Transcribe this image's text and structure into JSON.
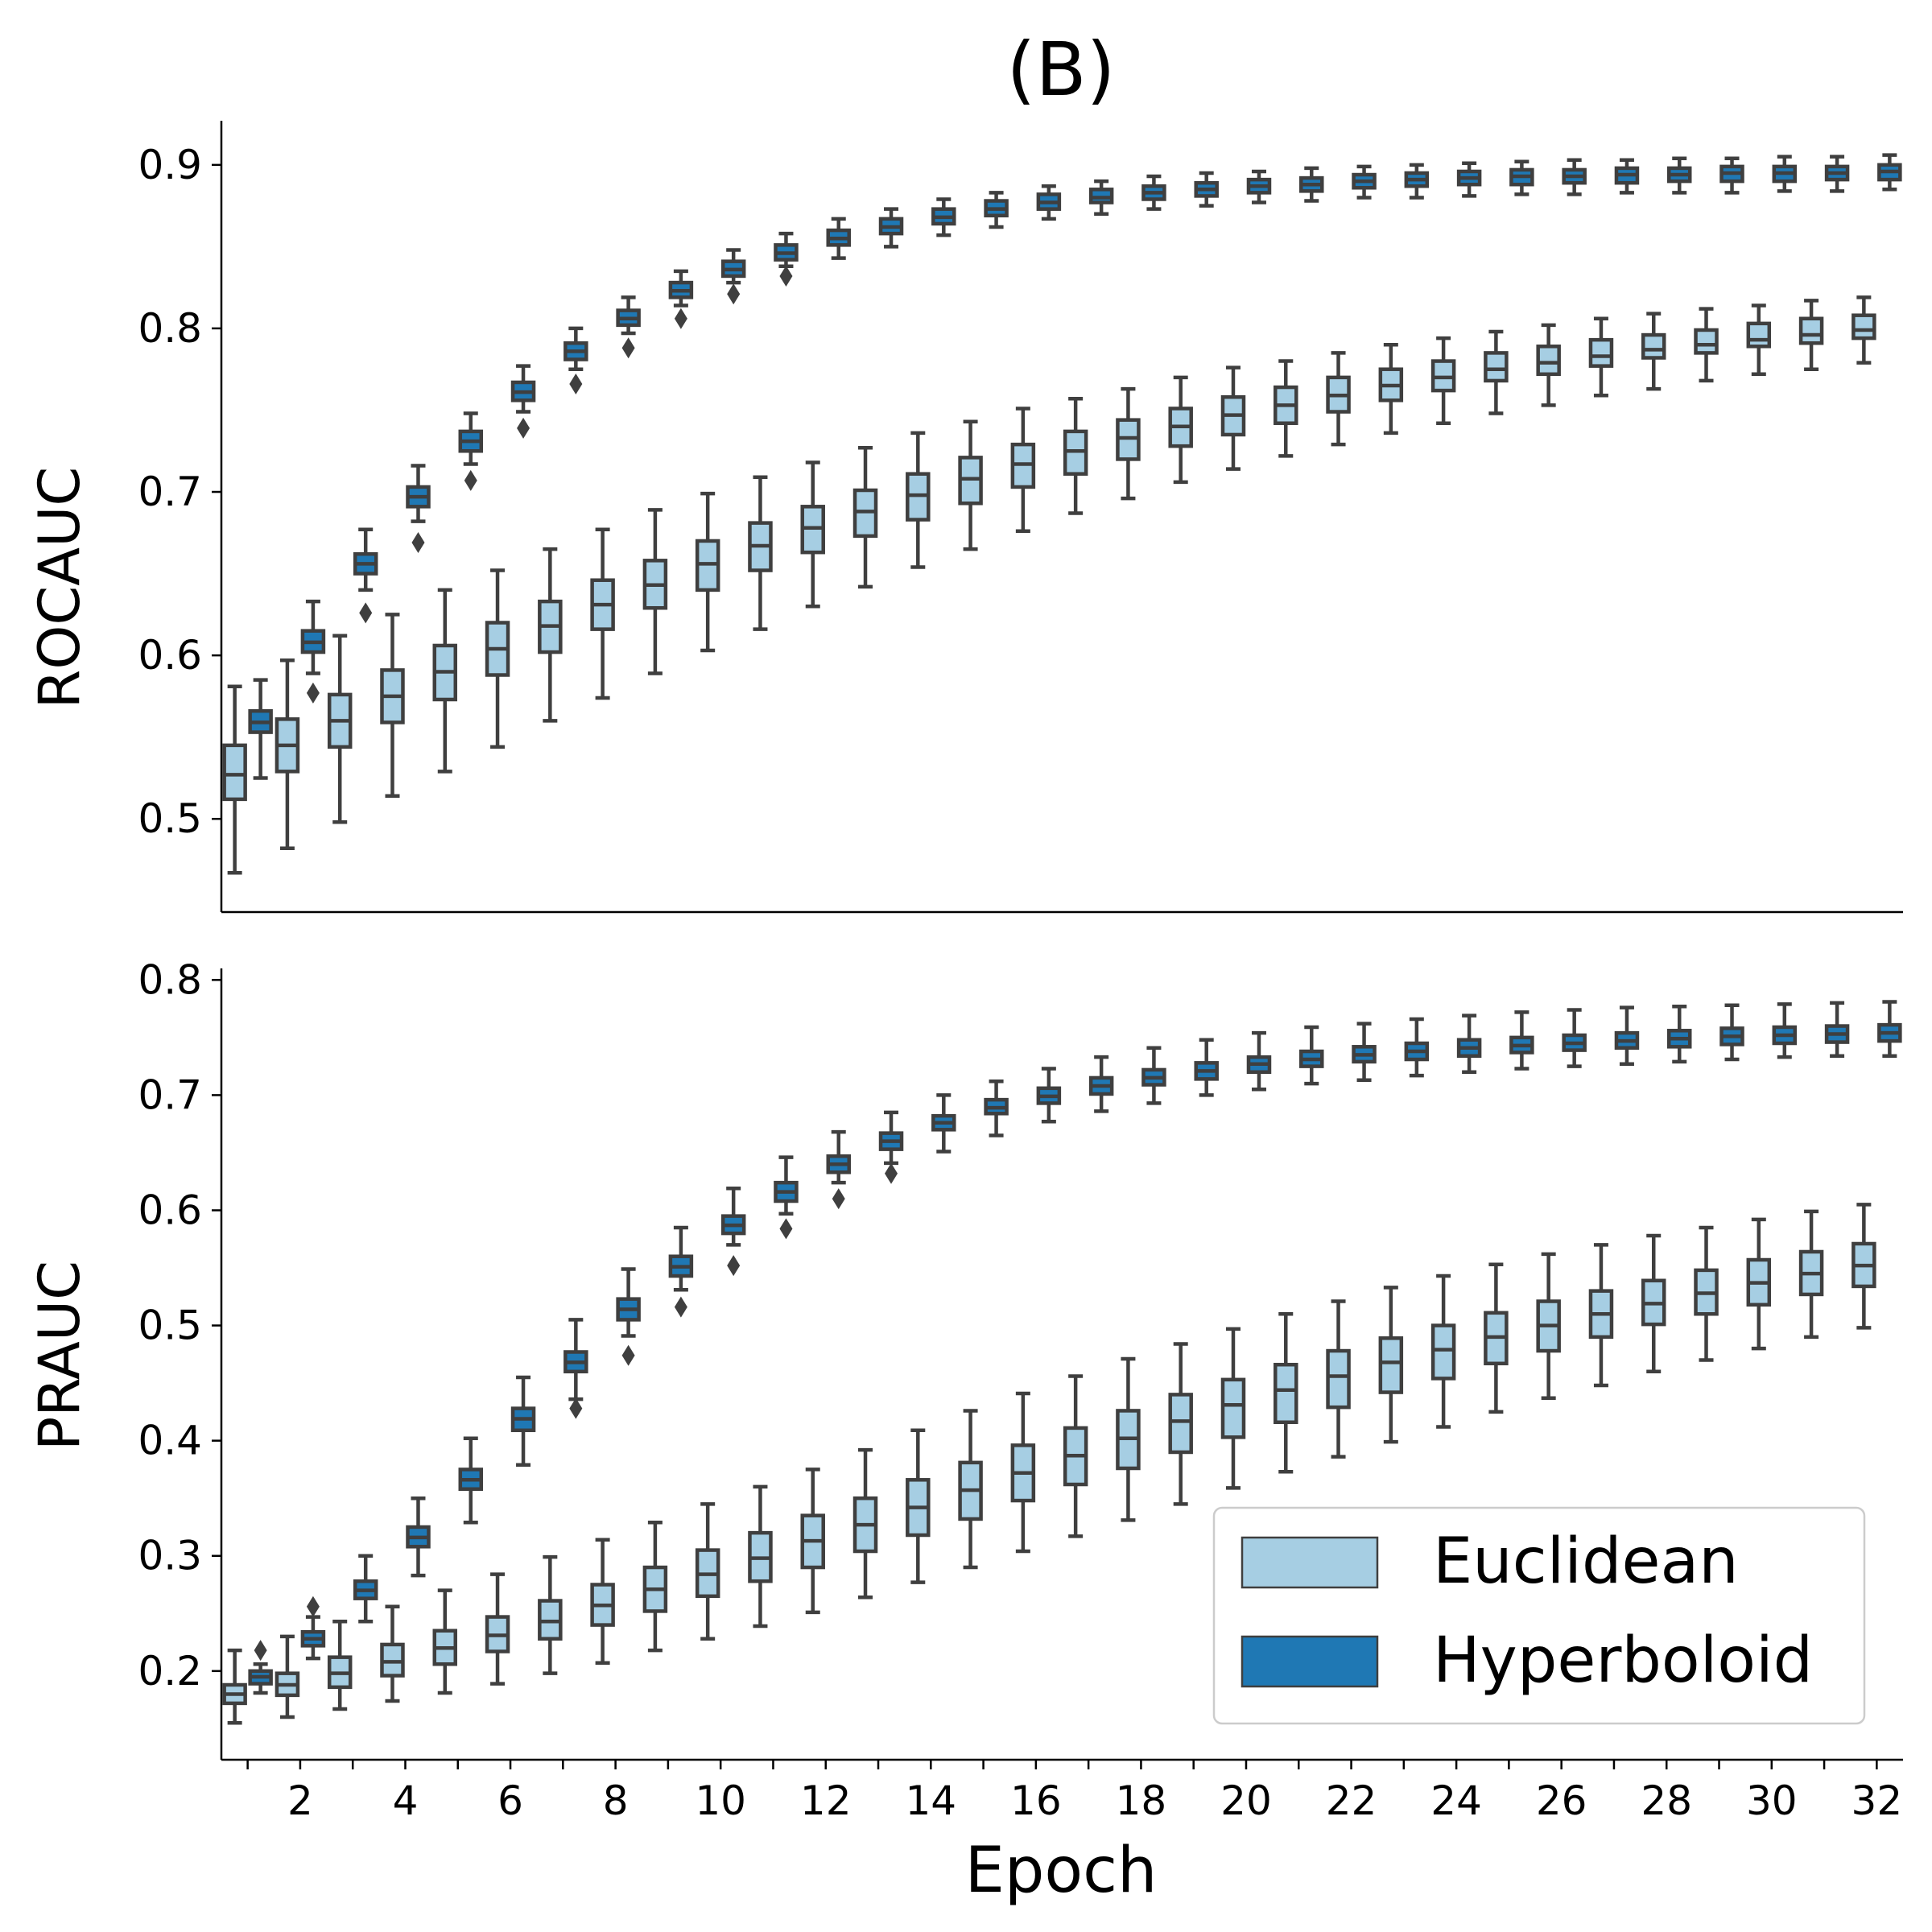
{
  "figure_title": "(B)",
  "colors": {
    "euclidean": "#a6cee3",
    "hyperboloid": "#1f78b4",
    "edge": "#3f3f3f"
  },
  "chart_data": [
    {
      "type": "box",
      "title": "(B)",
      "xlabel": "",
      "ylabel": "ROCAUC",
      "ylim": [
        0.443,
        0.927
      ],
      "yticks": [
        "0.5",
        "0.6",
        "0.7",
        "0.8",
        "0.9"
      ],
      "x": [
        1,
        2,
        3,
        4,
        5,
        6,
        7,
        8,
        9,
        10,
        11,
        12,
        13,
        14,
        15,
        16,
        17,
        18,
        19,
        20,
        21,
        22,
        23,
        24,
        25,
        26,
        27,
        28,
        29,
        30,
        31,
        32
      ],
      "series": [
        {
          "name": "Euclidean",
          "median": [
            0.527,
            0.545,
            0.56,
            0.575,
            0.59,
            0.604,
            0.618,
            0.631,
            0.643,
            0.656,
            0.667,
            0.678,
            0.688,
            0.698,
            0.708,
            0.717,
            0.725,
            0.733,
            0.74,
            0.747,
            0.753,
            0.759,
            0.765,
            0.77,
            0.775,
            0.779,
            0.783,
            0.787,
            0.79,
            0.793,
            0.796,
            0.799
          ],
          "q1": [
            0.512,
            0.529,
            0.544,
            0.559,
            0.573,
            0.588,
            0.602,
            0.616,
            0.629,
            0.64,
            0.652,
            0.663,
            0.673,
            0.683,
            0.693,
            0.703,
            0.711,
            0.72,
            0.728,
            0.735,
            0.742,
            0.749,
            0.756,
            0.762,
            0.768,
            0.772,
            0.777,
            0.782,
            0.785,
            0.789,
            0.791,
            0.794
          ],
          "q3": [
            0.545,
            0.561,
            0.576,
            0.591,
            0.606,
            0.62,
            0.633,
            0.646,
            0.658,
            0.67,
            0.681,
            0.691,
            0.701,
            0.711,
            0.721,
            0.729,
            0.737,
            0.744,
            0.751,
            0.758,
            0.764,
            0.77,
            0.775,
            0.78,
            0.785,
            0.789,
            0.793,
            0.796,
            0.799,
            0.803,
            0.806,
            0.808
          ],
          "whislo": [
            0.467,
            0.482,
            0.498,
            0.514,
            0.529,
            0.544,
            0.56,
            0.574,
            0.589,
            0.603,
            0.616,
            0.63,
            0.642,
            0.654,
            0.665,
            0.676,
            0.687,
            0.696,
            0.706,
            0.714,
            0.722,
            0.729,
            0.736,
            0.742,
            0.748,
            0.753,
            0.759,
            0.763,
            0.768,
            0.772,
            0.775,
            0.779
          ],
          "whishi": [
            0.581,
            0.597,
            0.612,
            0.625,
            0.64,
            0.652,
            0.665,
            0.677,
            0.689,
            0.699,
            0.709,
            0.718,
            0.727,
            0.736,
            0.743,
            0.751,
            0.757,
            0.763,
            0.77,
            0.776,
            0.78,
            0.785,
            0.79,
            0.794,
            0.798,
            0.802,
            0.806,
            0.809,
            0.812,
            0.814,
            0.817,
            0.819
          ],
          "fliers": [
            [],
            [],
            [],
            [],
            [],
            [],
            [],
            [],
            [],
            [],
            [],
            [],
            [],
            [],
            [],
            [],
            [],
            [],
            [],
            [],
            [],
            [],
            [],
            [],
            [],
            [],
            [],
            [],
            [],
            [],
            [],
            []
          ]
        },
        {
          "name": "Hyperboloid",
          "median": [
            0.559,
            0.608,
            0.656,
            0.697,
            0.731,
            0.761,
            0.786,
            0.806,
            0.823,
            0.836,
            0.846,
            0.855,
            0.862,
            0.868,
            0.873,
            0.877,
            0.88,
            0.883,
            0.885,
            0.887,
            0.888,
            0.89,
            0.891,
            0.892,
            0.893,
            0.893,
            0.894,
            0.894,
            0.895,
            0.895,
            0.895,
            0.896
          ],
          "q1": [
            0.553,
            0.602,
            0.65,
            0.691,
            0.725,
            0.756,
            0.781,
            0.802,
            0.819,
            0.832,
            0.842,
            0.851,
            0.858,
            0.864,
            0.869,
            0.873,
            0.877,
            0.879,
            0.881,
            0.883,
            0.884,
            0.886,
            0.887,
            0.888,
            0.888,
            0.889,
            0.889,
            0.89,
            0.89,
            0.89,
            0.891,
            0.891
          ],
          "q3": [
            0.566,
            0.615,
            0.662,
            0.703,
            0.737,
            0.767,
            0.791,
            0.811,
            0.828,
            0.841,
            0.851,
            0.86,
            0.867,
            0.873,
            0.878,
            0.882,
            0.885,
            0.887,
            0.889,
            0.891,
            0.892,
            0.894,
            0.895,
            0.896,
            0.897,
            0.897,
            0.898,
            0.898,
            0.899,
            0.899,
            0.899,
            0.9
          ],
          "whislo": [
            0.525,
            0.589,
            0.64,
            0.682,
            0.717,
            0.749,
            0.775,
            0.797,
            0.814,
            0.828,
            0.838,
            0.843,
            0.85,
            0.857,
            0.862,
            0.867,
            0.87,
            0.873,
            0.875,
            0.877,
            0.878,
            0.88,
            0.88,
            0.881,
            0.882,
            0.882,
            0.883,
            0.883,
            0.883,
            0.884,
            0.884,
            0.885
          ],
          "whishi": [
            0.585,
            0.633,
            0.677,
            0.716,
            0.748,
            0.777,
            0.8,
            0.819,
            0.835,
            0.848,
            0.858,
            0.867,
            0.873,
            0.879,
            0.883,
            0.887,
            0.89,
            0.893,
            0.895,
            0.896,
            0.898,
            0.899,
            0.9,
            0.901,
            0.902,
            0.903,
            0.903,
            0.904,
            0.904,
            0.905,
            0.905,
            0.906
          ],
          "fliers": [
            [],
            [
              0.577
            ],
            [
              0.626
            ],
            [
              0.669
            ],
            [
              0.707
            ],
            [
              0.739
            ],
            [
              0.766
            ],
            [
              0.788
            ],
            [
              0.806
            ],
            [
              0.821
            ],
            [
              0.832
            ],
            [],
            [],
            [],
            [],
            [],
            [],
            [],
            [],
            [],
            [],
            [],
            [],
            [],
            [],
            [],
            [],
            [],
            [],
            [],
            [],
            []
          ]
        }
      ]
    },
    {
      "type": "box",
      "xlabel": "Epoch",
      "ylabel": "PRAUC",
      "ylim": [
        0.123,
        0.81
      ],
      "yticks": [
        "0.2",
        "0.3",
        "0.4",
        "0.5",
        "0.6",
        "0.7",
        "0.8"
      ],
      "xticks": [
        "2",
        "4",
        "6",
        "8",
        "10",
        "12",
        "14",
        "16",
        "18",
        "20",
        "22",
        "24",
        "26",
        "28",
        "30",
        "32"
      ],
      "legend": {
        "entries": [
          "Euclidean",
          "Hyperboloid"
        ],
        "placement": "lower right"
      },
      "x": [
        1,
        2,
        3,
        4,
        5,
        6,
        7,
        8,
        9,
        10,
        11,
        12,
        13,
        14,
        15,
        16,
        17,
        18,
        19,
        20,
        21,
        22,
        23,
        24,
        25,
        26,
        27,
        28,
        29,
        30,
        31,
        32
      ],
      "series": [
        {
          "name": "Euclidean",
          "median": [
            0.18,
            0.188,
            0.198,
            0.208,
            0.22,
            0.231,
            0.243,
            0.257,
            0.271,
            0.284,
            0.298,
            0.313,
            0.327,
            0.342,
            0.357,
            0.372,
            0.387,
            0.402,
            0.417,
            0.431,
            0.444,
            0.456,
            0.468,
            0.479,
            0.49,
            0.5,
            0.51,
            0.519,
            0.528,
            0.537,
            0.545,
            0.552
          ],
          "q1": [
            0.172,
            0.179,
            0.186,
            0.196,
            0.206,
            0.217,
            0.228,
            0.24,
            0.252,
            0.265,
            0.278,
            0.29,
            0.304,
            0.318,
            0.332,
            0.348,
            0.362,
            0.376,
            0.39,
            0.403,
            0.416,
            0.429,
            0.442,
            0.454,
            0.467,
            0.478,
            0.49,
            0.501,
            0.51,
            0.518,
            0.527,
            0.534
          ],
          "q3": [
            0.188,
            0.198,
            0.212,
            0.223,
            0.235,
            0.247,
            0.261,
            0.275,
            0.29,
            0.305,
            0.32,
            0.335,
            0.35,
            0.366,
            0.381,
            0.396,
            0.411,
            0.426,
            0.44,
            0.453,
            0.466,
            0.478,
            0.489,
            0.5,
            0.511,
            0.521,
            0.53,
            0.539,
            0.548,
            0.557,
            0.564,
            0.571
          ],
          "whislo": [
            0.155,
            0.16,
            0.167,
            0.174,
            0.181,
            0.189,
            0.198,
            0.207,
            0.218,
            0.228,
            0.239,
            0.251,
            0.264,
            0.277,
            0.29,
            0.304,
            0.317,
            0.331,
            0.345,
            0.359,
            0.373,
            0.386,
            0.399,
            0.412,
            0.425,
            0.437,
            0.448,
            0.46,
            0.47,
            0.48,
            0.49,
            0.498
          ],
          "whishi": [
            0.218,
            0.23,
            0.243,
            0.256,
            0.27,
            0.284,
            0.299,
            0.314,
            0.329,
            0.345,
            0.36,
            0.375,
            0.392,
            0.409,
            0.426,
            0.441,
            0.456,
            0.471,
            0.484,
            0.497,
            0.51,
            0.521,
            0.533,
            0.543,
            0.553,
            0.562,
            0.57,
            0.578,
            0.585,
            0.592,
            0.599,
            0.605
          ],
          "fliers": [
            [],
            [],
            [],
            [],
            [],
            [],
            [],
            [],
            [],
            [],
            [],
            [],
            [],
            [],
            [],
            [],
            [],
            [],
            [],
            [],
            [],
            [],
            [],
            [],
            [],
            [],
            [],
            [],
            [],
            [],
            [],
            []
          ]
        },
        {
          "name": "Hyperboloid",
          "median": [
            0.195,
            0.228,
            0.27,
            0.316,
            0.366,
            0.419,
            0.468,
            0.514,
            0.551,
            0.587,
            0.616,
            0.64,
            0.66,
            0.676,
            0.689,
            0.699,
            0.708,
            0.715,
            0.721,
            0.727,
            0.731,
            0.735,
            0.738,
            0.741,
            0.743,
            0.745,
            0.747,
            0.749,
            0.751,
            0.752,
            0.753,
            0.754
          ],
          "q1": [
            0.189,
            0.222,
            0.263,
            0.308,
            0.358,
            0.409,
            0.46,
            0.505,
            0.543,
            0.58,
            0.608,
            0.633,
            0.653,
            0.67,
            0.684,
            0.693,
            0.701,
            0.709,
            0.714,
            0.72,
            0.725,
            0.729,
            0.731,
            0.734,
            0.737,
            0.739,
            0.741,
            0.742,
            0.744,
            0.745,
            0.746,
            0.747
          ],
          "q3": [
            0.2,
            0.234,
            0.278,
            0.325,
            0.375,
            0.428,
            0.477,
            0.523,
            0.56,
            0.595,
            0.624,
            0.647,
            0.667,
            0.682,
            0.696,
            0.706,
            0.715,
            0.722,
            0.728,
            0.733,
            0.738,
            0.742,
            0.745,
            0.748,
            0.75,
            0.752,
            0.754,
            0.756,
            0.758,
            0.759,
            0.76,
            0.761
          ],
          "whislo": [
            0.181,
            0.211,
            0.243,
            0.283,
            0.329,
            0.379,
            0.436,
            0.491,
            0.531,
            0.57,
            0.597,
            0.624,
            0.641,
            0.651,
            0.665,
            0.677,
            0.686,
            0.693,
            0.7,
            0.705,
            0.71,
            0.713,
            0.717,
            0.72,
            0.723,
            0.725,
            0.727,
            0.729,
            0.731,
            0.733,
            0.734,
            0.734
          ],
          "whishi": [
            0.206,
            0.247,
            0.3,
            0.35,
            0.402,
            0.455,
            0.505,
            0.549,
            0.585,
            0.619,
            0.646,
            0.668,
            0.685,
            0.7,
            0.712,
            0.723,
            0.733,
            0.741,
            0.748,
            0.754,
            0.759,
            0.762,
            0.766,
            0.769,
            0.772,
            0.774,
            0.776,
            0.777,
            0.778,
            0.779,
            0.78,
            0.781
          ],
          "fliers": [
            [
              0.218
            ],
            [
              0.256
            ],
            [],
            [],
            [],
            [],
            [
              0.428
            ],
            [
              0.474
            ],
            [
              0.516
            ],
            [
              0.552
            ],
            [
              0.584
            ],
            [
              0.61
            ],
            [
              0.632
            ],
            [],
            [],
            [],
            [],
            [],
            [],
            [],
            [],
            [],
            [],
            [],
            [],
            [],
            [],
            [],
            [],
            [],
            [],
            []
          ]
        }
      ]
    }
  ]
}
